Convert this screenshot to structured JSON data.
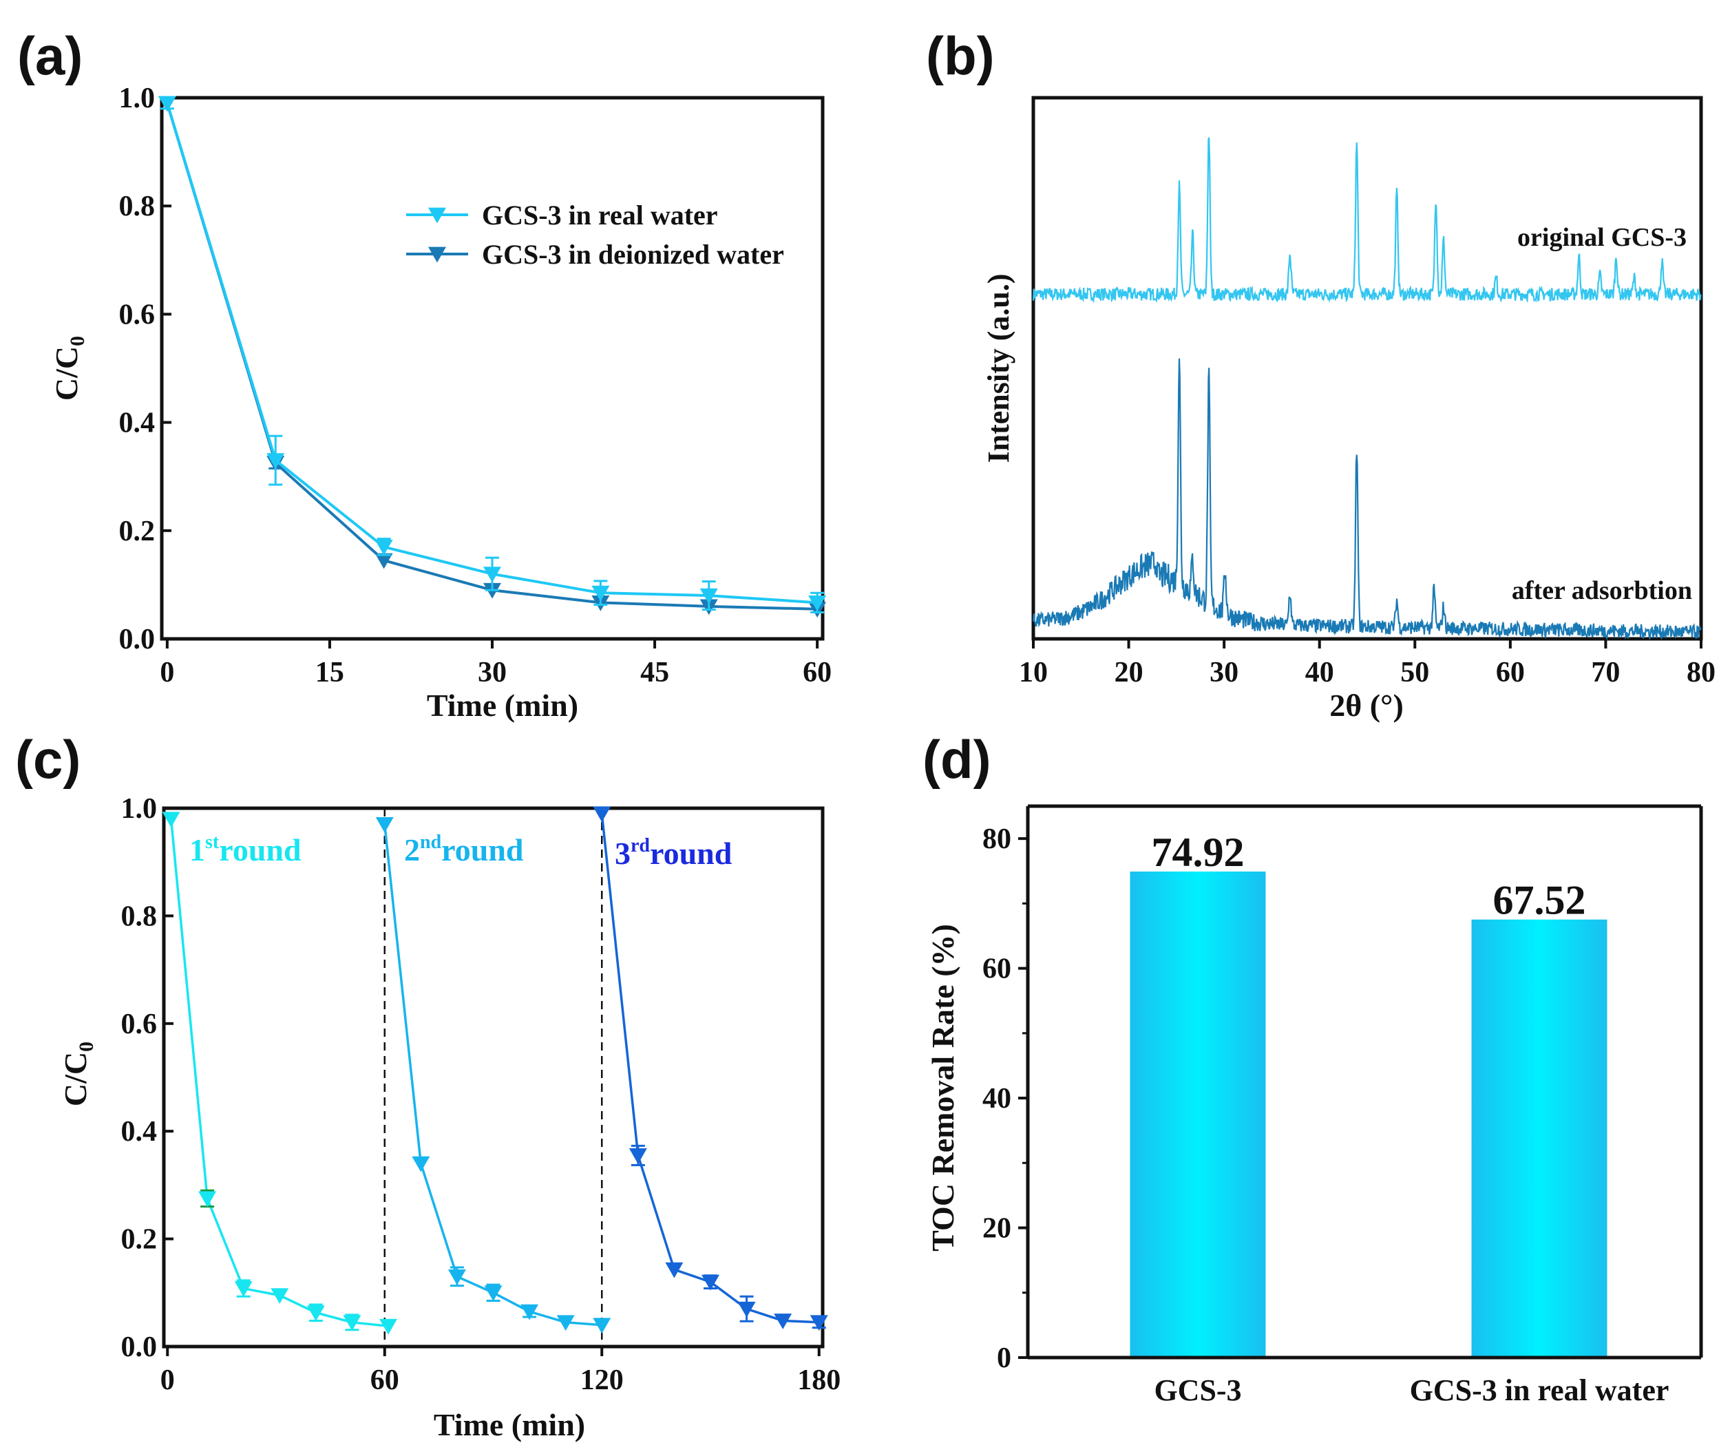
{
  "panel_labels": [
    "(a)",
    "(b)",
    "(c)",
    "(d)"
  ],
  "colors": {
    "real_water": "#1ec8f5",
    "deionized": "#1a7ab5",
    "original": "#33c6f0",
    "after": "#1a7ab5",
    "round1": "#17e6f0",
    "round2": "#16b4ee",
    "round3": "#1565d8",
    "round3_label": "#1a2ae0",
    "bar_edge": "#19c0f0",
    "bar_center": "#00f0ff"
  },
  "chart_data": [
    {
      "id": "a",
      "type": "line",
      "xlabel": "Time (min)",
      "ylabel": "C/C0",
      "xlim": [
        -0.5,
        60.5
      ],
      "ylim": [
        0,
        1
      ],
      "xticks": [
        0,
        15,
        30,
        45,
        60
      ],
      "yticks": [
        "0.0",
        "0.2",
        "0.4",
        "0.6",
        "0.8",
        "1.0"
      ],
      "legend_position": "top-right",
      "x": [
        0,
        10,
        20,
        30,
        40,
        50,
        60
      ],
      "series": [
        {
          "name": "GCS-3 in real water",
          "color_key": "real_water",
          "values": [
            0.99,
            0.33,
            0.17,
            0.12,
            0.085,
            0.08,
            0.067
          ],
          "err": [
            0.01,
            0.045,
            0.015,
            0.03,
            0.022,
            0.026,
            0.018
          ]
        },
        {
          "name": "GCS-3 in deionized water",
          "color_key": "deionized",
          "values": [
            0.99,
            0.325,
            0.145,
            0.09,
            0.067,
            0.06,
            0.055
          ],
          "err": [
            0.005,
            0.01,
            0.008,
            0.006,
            0.006,
            0.006,
            0.006
          ]
        }
      ]
    },
    {
      "id": "b",
      "type": "line",
      "xlabel": "2θ (°)",
      "ylabel": "Intensity (a.u.)",
      "xlim": [
        10,
        80
      ],
      "ylim": [
        0,
        10
      ],
      "xticks": [
        10,
        20,
        30,
        40,
        50,
        60,
        70,
        80
      ],
      "series": [
        {
          "name": "original GCS-3",
          "color_key": "original",
          "baseline": 6.37,
          "noise": 0.12,
          "peaks": [
            [
              25.3,
              2.0
            ],
            [
              26.7,
              1.1
            ],
            [
              28.4,
              3.0
            ],
            [
              36.9,
              0.75
            ],
            [
              43.9,
              2.8
            ],
            [
              48.1,
              1.9
            ],
            [
              52.2,
              1.8
            ],
            [
              53.0,
              1.0
            ],
            [
              58.5,
              0.3
            ],
            [
              67.2,
              0.7
            ],
            [
              69.4,
              0.35
            ],
            [
              71.1,
              0.7
            ],
            [
              73.0,
              0.3
            ],
            [
              75.9,
              0.6
            ]
          ],
          "hump": [
            23,
            4,
            0
          ]
        },
        {
          "name": "after adsorbtion",
          "color_key": "after",
          "baseline": 0.33,
          "noise": 0.22,
          "peaks": [
            [
              25.3,
              4.2
            ],
            [
              26.7,
              0.6
            ],
            [
              28.4,
              4.2
            ],
            [
              30.1,
              0.8
            ],
            [
              36.9,
              0.6
            ],
            [
              43.9,
              3.3
            ],
            [
              48.1,
              0.5
            ],
            [
              52.0,
              0.7
            ],
            [
              53.0,
              0.4
            ]
          ],
          "hump": [
            23,
            4.2,
            1.1
          ]
        }
      ]
    },
    {
      "id": "c",
      "type": "line",
      "xlabel": "Time (min)",
      "ylabel": "C/C0",
      "xlim": [
        -1,
        181
      ],
      "ylim": [
        0,
        1
      ],
      "xticks": [
        0,
        60,
        120,
        180
      ],
      "yticks": [
        "0.0",
        "0.2",
        "0.4",
        "0.6",
        "0.8",
        "1.0"
      ],
      "dividers": [
        60,
        120
      ],
      "series": [
        {
          "name": "1st round",
          "ordinal": "1",
          "sup": "st",
          "word": "round",
          "color_key": "round1",
          "x": [
            1,
            11,
            21,
            31,
            41,
            51,
            61
          ],
          "values": [
            0.98,
            0.275,
            0.108,
            0.095,
            0.063,
            0.045,
            0.038
          ],
          "err": [
            0,
            0.015,
            0.015,
            0.005,
            0.015,
            0.014,
            0.004
          ]
        },
        {
          "name": "2nd round",
          "ordinal": "2",
          "sup": "nd",
          "word": "round",
          "color_key": "round2",
          "x": [
            60,
            70,
            80,
            90,
            100,
            110,
            120
          ],
          "values": [
            0.97,
            0.34,
            0.13,
            0.1,
            0.065,
            0.045,
            0.04
          ],
          "err": [
            0,
            0.005,
            0.017,
            0.015,
            0.01,
            0.004,
            0.004
          ]
        },
        {
          "name": "3rd round",
          "ordinal": "3",
          "sup": "rd",
          "word": "round",
          "color_key": "round3",
          "label_color_key": "round3_label",
          "x": [
            120,
            130,
            140,
            150,
            160,
            170,
            180
          ],
          "values": [
            0.99,
            0.355,
            0.143,
            0.12,
            0.07,
            0.048,
            0.045
          ],
          "err": [
            0,
            0.018,
            0.005,
            0.012,
            0.023,
            0.004,
            0.01
          ]
        }
      ]
    },
    {
      "id": "d",
      "type": "bar",
      "ylabel": "TOC Removal Rate (%)",
      "ylim": [
        0,
        85
      ],
      "yticks": [
        0,
        20,
        40,
        60,
        80
      ],
      "categories": [
        "GCS-3",
        "GCS-3 in real water"
      ],
      "values": [
        74.92,
        67.52
      ],
      "value_labels": [
        "74.92",
        "67.52"
      ]
    }
  ]
}
